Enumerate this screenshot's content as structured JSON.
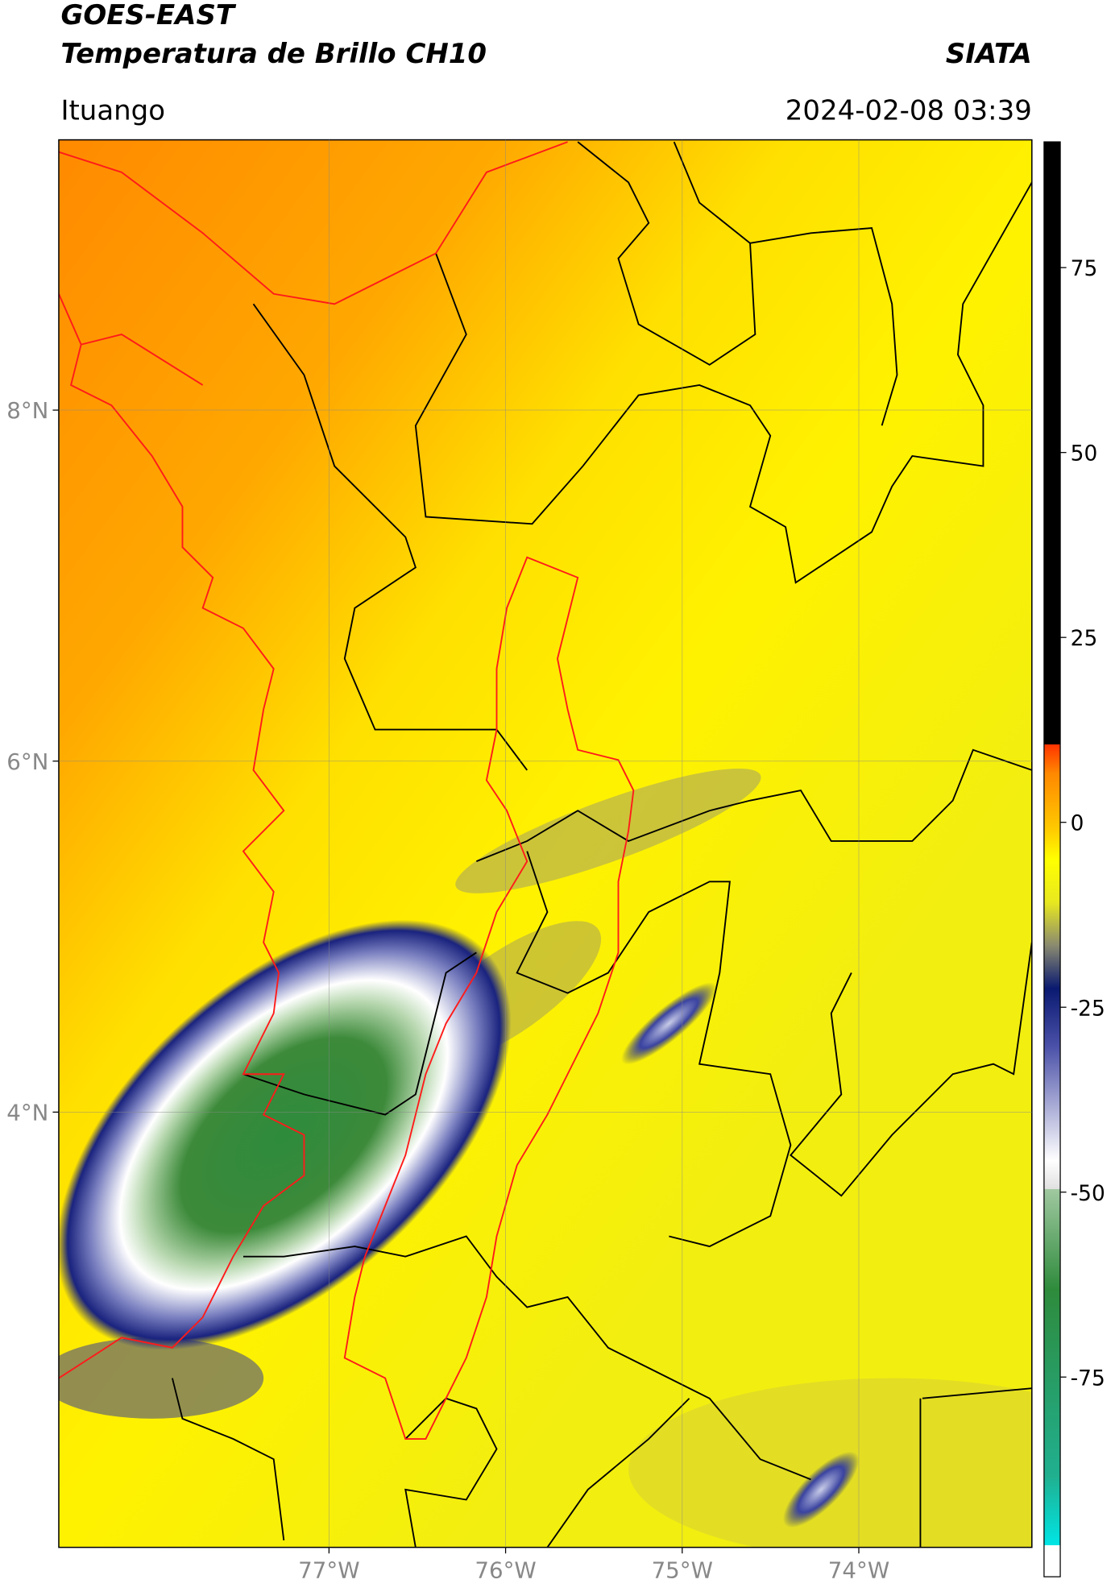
{
  "header": {
    "title_line1": "GOES-EAST",
    "title_line2": "Temperatura de Brillo CH10",
    "brand": "SIATA",
    "location": "Ituango",
    "timestamp": "2024-02-08 03:39"
  },
  "map": {
    "xlim": [
      -78.53,
      -73.02
    ],
    "ylim": [
      1.52,
      9.54
    ],
    "xticks": [
      {
        "value": -77,
        "label": "77°W"
      },
      {
        "value": -76,
        "label": "76°W"
      },
      {
        "value": -75,
        "label": "75°W"
      },
      {
        "value": -74,
        "label": "74°W"
      }
    ],
    "yticks": [
      {
        "value": 8,
        "label": "8°N"
      },
      {
        "value": 6,
        "label": "6°N"
      },
      {
        "value": 4,
        "label": "4°N"
      }
    ]
  },
  "colorbar": {
    "range": [
      -102,
      92
    ],
    "ticks": [
      75,
      50,
      25,
      0,
      -25,
      -50,
      -75
    ]
  }
}
